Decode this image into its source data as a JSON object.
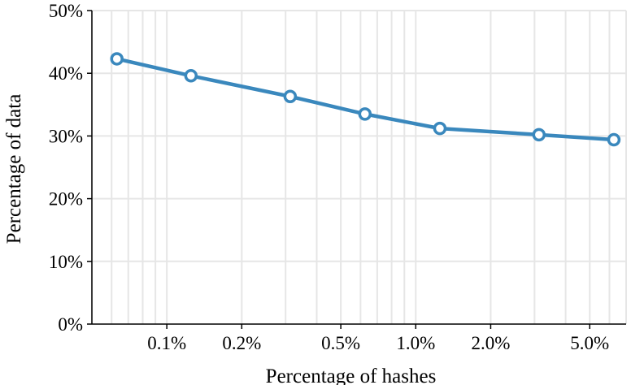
{
  "chart_data": {
    "type": "line",
    "xlabel": "Percentage of hashes",
    "ylabel": "Percentage of data",
    "x_scale": "log",
    "xlim": [
      0.05,
      7.0
    ],
    "ylim": [
      0,
      50
    ],
    "grid": true,
    "x_ticks": [
      {
        "value": 0.1,
        "label": "0.1%"
      },
      {
        "value": 0.2,
        "label": "0.2%"
      },
      {
        "value": 0.5,
        "label": "0.5%"
      },
      {
        "value": 1.0,
        "label": "1.0%"
      },
      {
        "value": 2.0,
        "label": "2.0%"
      },
      {
        "value": 5.0,
        "label": "5.0%"
      }
    ],
    "y_ticks": [
      {
        "value": 0,
        "label": "0%"
      },
      {
        "value": 10,
        "label": "10%"
      },
      {
        "value": 20,
        "label": "20%"
      },
      {
        "value": 30,
        "label": "30%"
      },
      {
        "value": 40,
        "label": "40%"
      },
      {
        "value": 50,
        "label": "50%"
      }
    ],
    "series": [
      {
        "color": "#3a88bd",
        "marker_fill": "#ffffff",
        "x": [
          0.063,
          0.125,
          0.313,
          0.625,
          1.25,
          3.125,
          6.25
        ],
        "y": [
          42.3,
          39.6,
          36.3,
          33.5,
          31.2,
          30.2,
          29.4
        ]
      }
    ]
  }
}
